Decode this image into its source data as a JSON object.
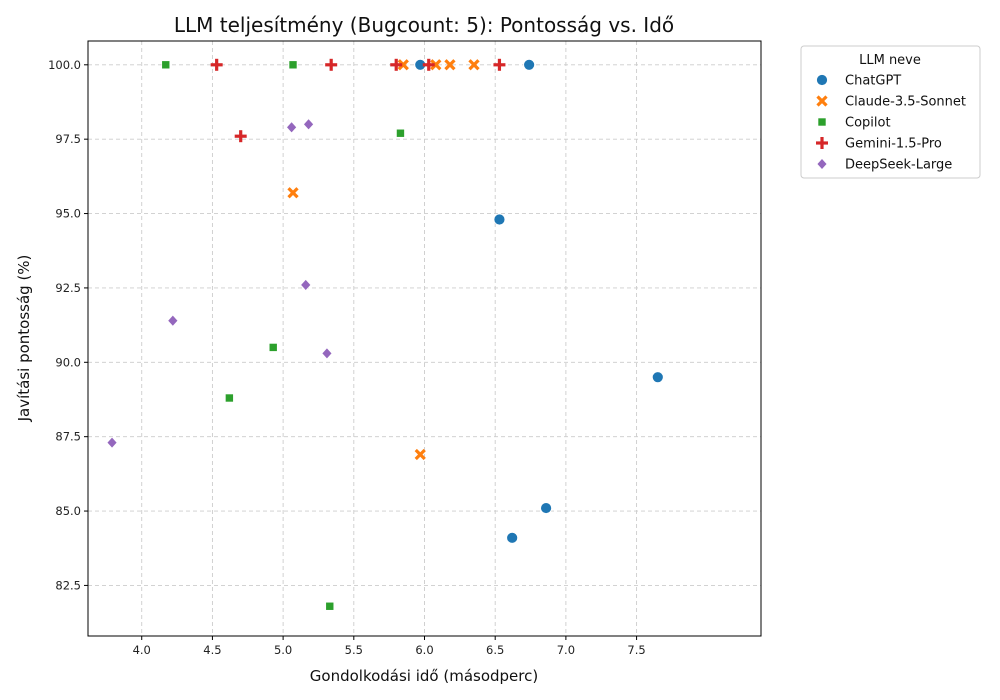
{
  "chart_data": {
    "type": "scatter",
    "title": "LLM teljesítmény (Bugcount: 5): Pontosság vs. Idő",
    "xlabel": "Gondolkodási idő (másodperc)",
    "ylabel": "Javítási pontosság (%)",
    "xlim": [
      3.62,
      8.38
    ],
    "ylim": [
      80.8,
      100.8
    ],
    "x_ticks": [
      4.0,
      4.5,
      5.0,
      5.5,
      6.0,
      6.5,
      7.0,
      7.5
    ],
    "x_tick_labels": [
      "4.0",
      "4.5",
      "5.0",
      "5.5",
      "6.0",
      "6.5",
      "7.0",
      "7.5"
    ],
    "y_ticks": [
      82.5,
      85.0,
      87.5,
      90.0,
      92.5,
      95.0,
      97.5,
      100.0
    ],
    "y_tick_labels": [
      "82.5",
      "85.0",
      "87.5",
      "90.0",
      "92.5",
      "95.0",
      "97.5",
      "100.0"
    ],
    "grid": true,
    "legend_title": "LLM neve",
    "legend_position": "outside-top-right",
    "series": [
      {
        "name": "ChatGPT",
        "marker": "circle",
        "color": "#1f77b4",
        "points": [
          [
            5.97,
            100.0
          ],
          [
            6.74,
            100.0
          ],
          [
            6.53,
            94.8
          ],
          [
            7.65,
            89.5
          ],
          [
            6.86,
            85.1
          ],
          [
            6.62,
            84.1
          ]
        ]
      },
      {
        "name": "Claude-3.5-Sonnet",
        "marker": "x",
        "color": "#ff7f0e",
        "points": [
          [
            5.85,
            100.0
          ],
          [
            6.08,
            100.0
          ],
          [
            6.18,
            100.0
          ],
          [
            6.35,
            100.0
          ],
          [
            5.07,
            95.7
          ],
          [
            5.97,
            86.9
          ]
        ]
      },
      {
        "name": "Copilot",
        "marker": "square",
        "color": "#2ca02c",
        "points": [
          [
            4.17,
            100.0
          ],
          [
            5.07,
            100.0
          ],
          [
            5.83,
            97.7
          ],
          [
            4.93,
            90.5
          ],
          [
            4.62,
            88.8
          ],
          [
            5.33,
            81.8
          ]
        ]
      },
      {
        "name": "Gemini-1.5-Pro",
        "marker": "plus",
        "color": "#d62728",
        "points": [
          [
            4.53,
            100.0
          ],
          [
            5.34,
            100.0
          ],
          [
            5.8,
            100.0
          ],
          [
            6.03,
            100.0
          ],
          [
            6.53,
            100.0
          ],
          [
            4.7,
            97.6
          ]
        ]
      },
      {
        "name": "DeepSeek-Large",
        "marker": "diamond",
        "color": "#9467bd",
        "points": [
          [
            5.06,
            97.9
          ],
          [
            5.18,
            98.0
          ],
          [
            5.16,
            92.6
          ],
          [
            4.22,
            91.4
          ],
          [
            5.31,
            90.3
          ],
          [
            3.79,
            87.3
          ]
        ]
      }
    ]
  }
}
